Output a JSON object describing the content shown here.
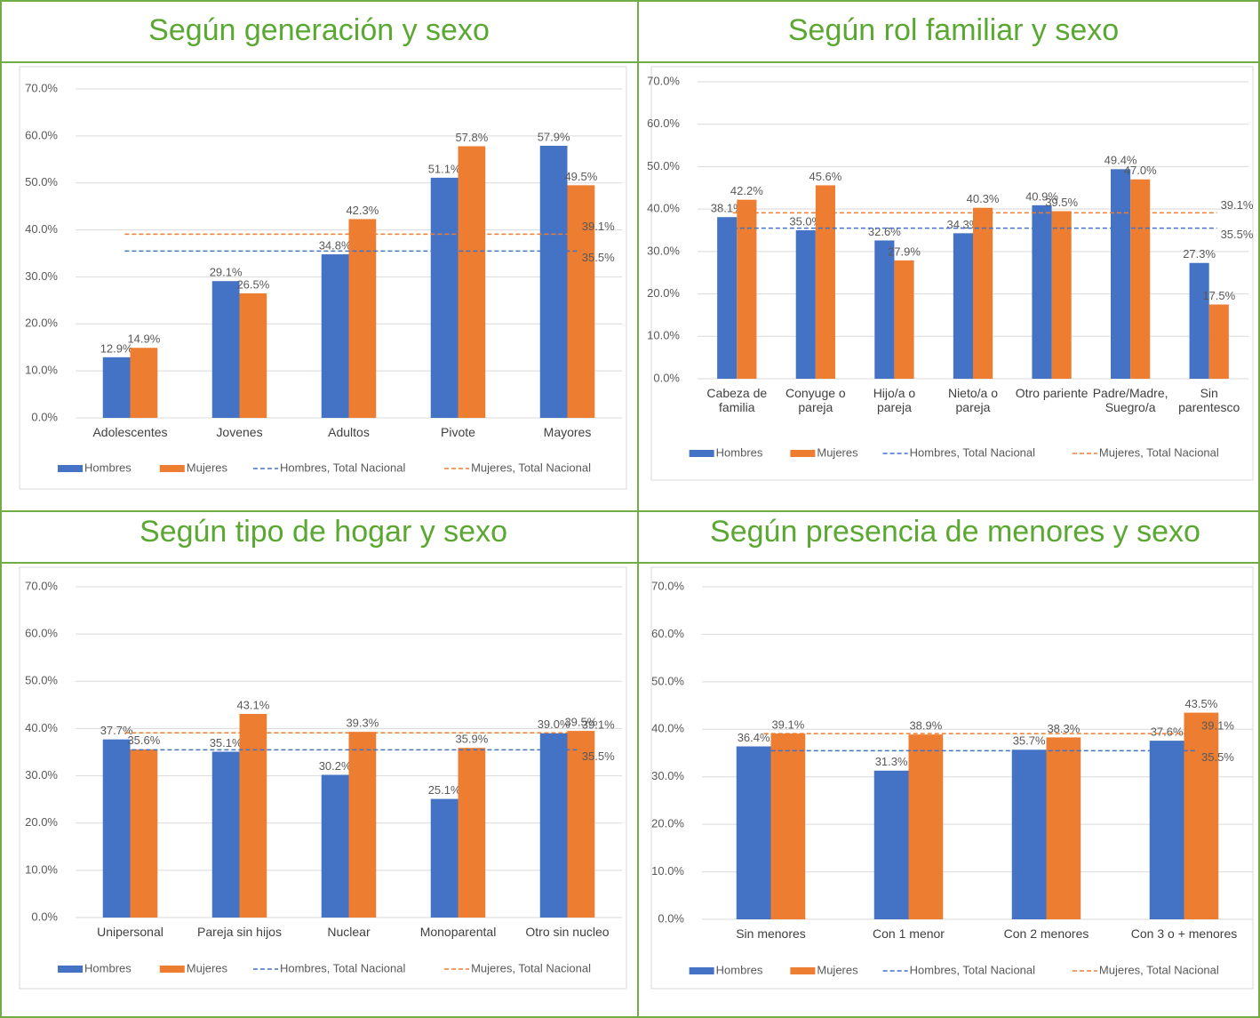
{
  "chart_data": [
    {
      "type": "bar",
      "title": "Según generación y sexo",
      "categories": [
        "Adolescentes",
        "Jovenes",
        "Adultos",
        "Pivote",
        "Mayores"
      ],
      "series": [
        {
          "name": "Hombres",
          "color": "#4472c4",
          "values": [
            12.9,
            29.1,
            34.8,
            51.1,
            57.9
          ],
          "value_labels": [
            "12.9%",
            "29.1%",
            "34.8%",
            "51.1%",
            "57.9%"
          ]
        },
        {
          "name": "Mujeres",
          "color": "#ed7d31",
          "values": [
            14.9,
            26.5,
            42.3,
            57.8,
            49.5
          ],
          "value_labels": [
            "14.9%",
            "26.5%",
            "42.3%",
            "57.8%",
            "49.5%"
          ]
        }
      ],
      "reference_lines": [
        {
          "name": "Hombres, Total Nacional",
          "color": "#4472c4",
          "value": 35.5,
          "value_label": "35.5%"
        },
        {
          "name": "Mujeres, Total Nacional",
          "color": "#ed7d31",
          "value": 39.1,
          "value_label": "39.1%"
        }
      ],
      "ylim": [
        0,
        70
      ],
      "yticks": [
        {
          "value": 0,
          "label": "0.0%"
        },
        {
          "value": 10,
          "label": "10.0%"
        },
        {
          "value": 20,
          "label": "20.0%"
        },
        {
          "value": 30,
          "label": "30.0%"
        },
        {
          "value": 40,
          "label": "40.0%"
        },
        {
          "value": 50,
          "label": "50.0%"
        },
        {
          "value": 60,
          "label": "60.0%"
        },
        {
          "value": 70,
          "label": "70.0%"
        }
      ],
      "grid": true,
      "legend": "bottom"
    },
    {
      "type": "bar",
      "title": "Según rol familiar y sexo",
      "categories": [
        "Cabeza de familia",
        "Conyuge o pareja",
        "Hijo/a o pareja",
        "Nieto/a o pareja",
        "Otro pariente",
        "Padre/Madre, Suegro/a",
        "Sin parentesco"
      ],
      "series": [
        {
          "name": "Hombres",
          "color": "#4472c4",
          "values": [
            38.1,
            35.0,
            32.6,
            34.3,
            40.9,
            49.4,
            27.3
          ],
          "value_labels": [
            "38.1%",
            "35.0%",
            "32.6%",
            "34.3%",
            "40.9%",
            "49.4%",
            "27.3%"
          ]
        },
        {
          "name": "Mujeres",
          "color": "#ed7d31",
          "values": [
            42.2,
            45.6,
            27.9,
            40.3,
            39.5,
            47.0,
            17.5
          ],
          "value_labels": [
            "42.2%",
            "45.6%",
            "27.9%",
            "40.3%",
            "39.5%",
            "47.0%",
            "17.5%"
          ]
        }
      ],
      "reference_lines": [
        {
          "name": "Hombres, Total Nacional",
          "color": "#4472c4",
          "value": 35.5,
          "value_label": "35.5%"
        },
        {
          "name": "Mujeres, Total Nacional",
          "color": "#ed7d31",
          "value": 39.1,
          "value_label": "39.1%"
        }
      ],
      "ylim": [
        0,
        70
      ],
      "yticks": [
        {
          "value": 0,
          "label": "0.0%"
        },
        {
          "value": 10,
          "label": "10.0%"
        },
        {
          "value": 20,
          "label": "20.0%"
        },
        {
          "value": 30,
          "label": "30.0%"
        },
        {
          "value": 40,
          "label": "40.0%"
        },
        {
          "value": 50,
          "label": "50.0%"
        },
        {
          "value": 60,
          "label": "60.0%"
        },
        {
          "value": 70,
          "label": "70.0%"
        }
      ],
      "grid": true,
      "legend": "bottom"
    },
    {
      "type": "bar",
      "title": "Según tipo de hogar y sexo",
      "categories": [
        "Unipersonal",
        "Pareja sin hijos",
        "Nuclear",
        "Monoparental",
        "Otro sin nucleo"
      ],
      "series": [
        {
          "name": "Hombres",
          "color": "#4472c4",
          "values": [
            37.7,
            35.1,
            30.2,
            25.1,
            39.0
          ],
          "value_labels": [
            "37.7%",
            "35.1%",
            "30.2%",
            "25.1%",
            "39.0%"
          ]
        },
        {
          "name": "Mujeres",
          "color": "#ed7d31",
          "values": [
            35.6,
            43.1,
            39.3,
            35.9,
            39.5
          ],
          "value_labels": [
            "35.6%",
            "43.1%",
            "39.3%",
            "35.9%",
            "39.5%"
          ]
        }
      ],
      "reference_lines": [
        {
          "name": "Hombres, Total Nacional",
          "color": "#4472c4",
          "value": 35.5,
          "value_label": "35.5%"
        },
        {
          "name": "Mujeres, Total Nacional",
          "color": "#ed7d31",
          "value": 39.1,
          "value_label": "39.1%"
        }
      ],
      "ylim": [
        0,
        70
      ],
      "yticks": [
        {
          "value": 0,
          "label": "0.0%"
        },
        {
          "value": 10,
          "label": "10.0%"
        },
        {
          "value": 20,
          "label": "20.0%"
        },
        {
          "value": 30,
          "label": "30.0%"
        },
        {
          "value": 40,
          "label": "40.0%"
        },
        {
          "value": 50,
          "label": "50.0%"
        },
        {
          "value": 60,
          "label": "60.0%"
        },
        {
          "value": 70,
          "label": "70.0%"
        }
      ],
      "grid": true,
      "legend": "bottom"
    },
    {
      "type": "bar",
      "title": "Según presencia de menores y sexo",
      "categories": [
        "Sin menores",
        "Con 1 menor",
        "Con 2 menores",
        "Con 3 o + menores"
      ],
      "series": [
        {
          "name": "Hombres",
          "color": "#4472c4",
          "values": [
            36.4,
            31.3,
            35.7,
            37.6
          ],
          "value_labels": [
            "36.4%",
            "31.3%",
            "35.7%",
            "37.6%"
          ]
        },
        {
          "name": "Mujeres",
          "color": "#ed7d31",
          "values": [
            39.1,
            38.9,
            38.3,
            43.5
          ],
          "value_labels": [
            "39.1%",
            "38.9%",
            "38.3%",
            "43.5%"
          ]
        }
      ],
      "reference_lines": [
        {
          "name": "Hombres, Total Nacional",
          "color": "#4472c4",
          "value": 35.5,
          "value_label": "35.5%"
        },
        {
          "name": "Mujeres, Total Nacional",
          "color": "#ed7d31",
          "value": 39.1,
          "value_label": "39.1%"
        }
      ],
      "ylim": [
        0,
        70
      ],
      "yticks": [
        {
          "value": 0,
          "label": "0.0%"
        },
        {
          "value": 10,
          "label": "10.0%"
        },
        {
          "value": 20,
          "label": "20.0%"
        },
        {
          "value": 30,
          "label": "30.0%"
        },
        {
          "value": 40,
          "label": "40.0%"
        },
        {
          "value": 50,
          "label": "50.0%"
        },
        {
          "value": 60,
          "label": "60.0%"
        },
        {
          "value": 70,
          "label": "70.0%"
        }
      ],
      "grid": true,
      "legend": "bottom"
    }
  ]
}
